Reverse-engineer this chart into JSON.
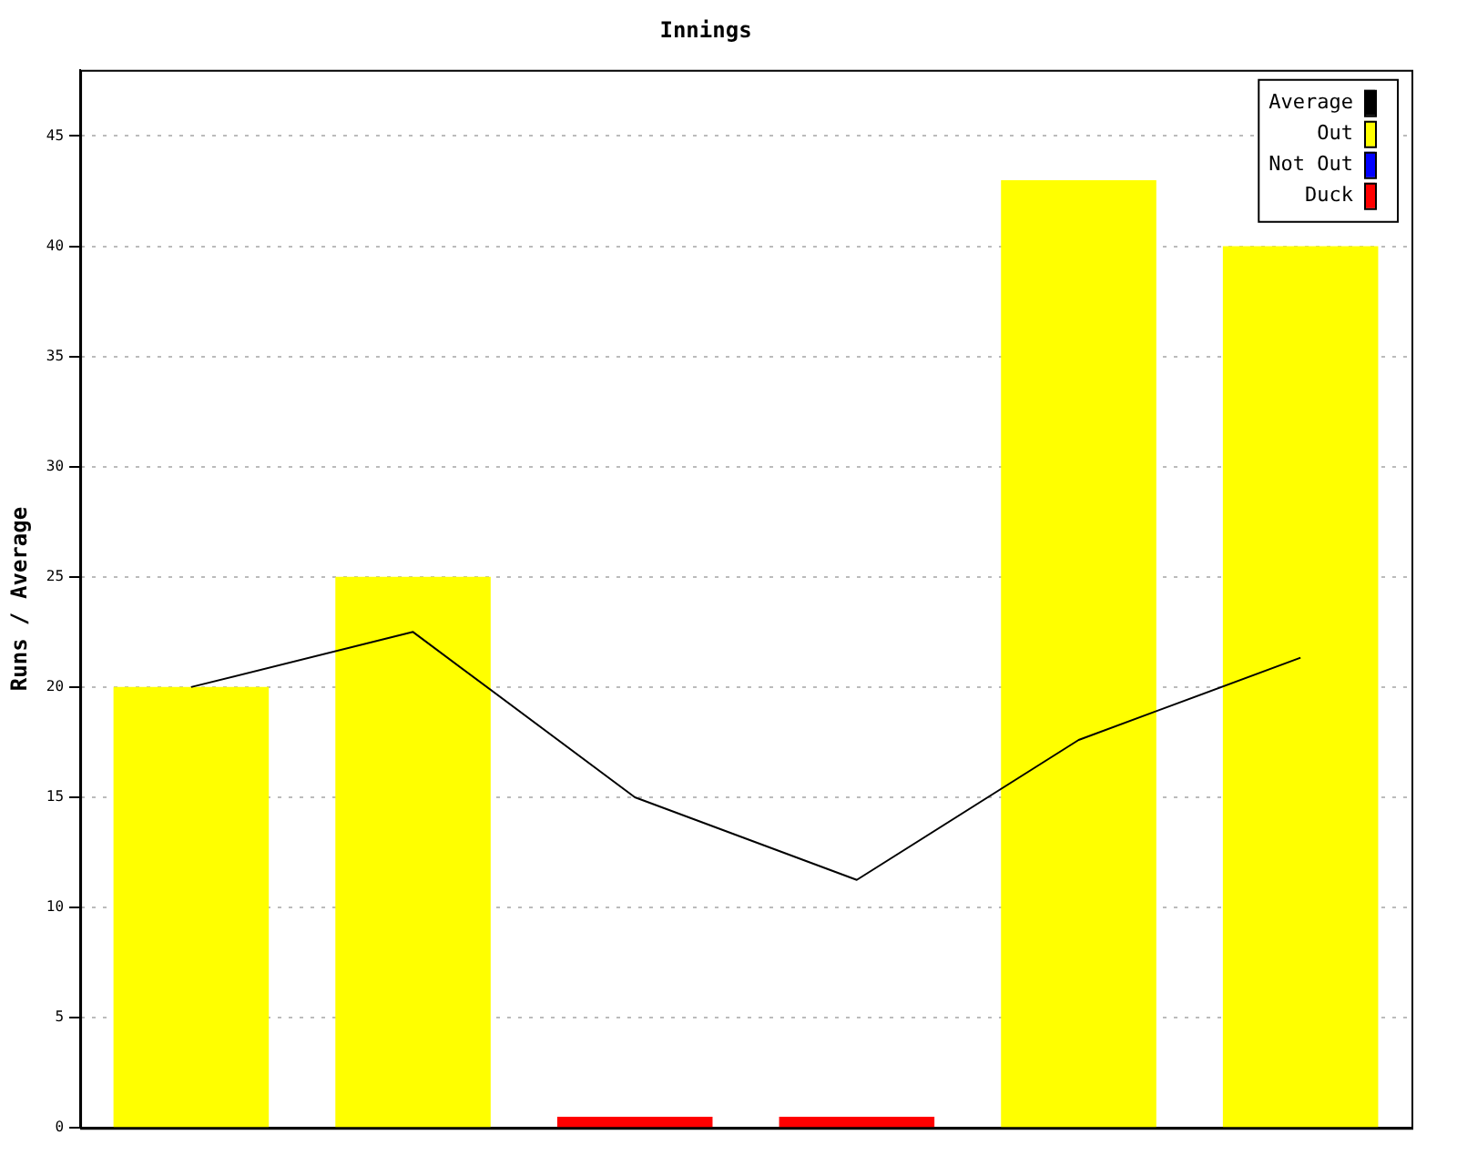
{
  "chart_data": {
    "type": "bar",
    "title": "Innings",
    "ylabel": "Runs / Average",
    "categories": [
      null,
      null,
      null,
      null,
      null,
      null
    ],
    "series": [
      {
        "name": "Average",
        "type": "line",
        "color": "#000000",
        "values": [
          20,
          22.5,
          15,
          11.25,
          17.6,
          21.33
        ]
      },
      {
        "name": "Out",
        "color": "#ffff00",
        "values": [
          20,
          25,
          null,
          null,
          43,
          40
        ]
      },
      {
        "name": "Not Out",
        "color": "#0000ff",
        "values": [
          null,
          null,
          null,
          null,
          null,
          null
        ]
      },
      {
        "name": "Duck",
        "color": "#ff0000",
        "values": [
          null,
          null,
          0.5,
          0.5,
          null,
          null
        ]
      }
    ],
    "stacked": true,
    "ylim": [
      0,
      48
    ],
    "yticks": [
      0,
      5,
      10,
      15,
      20,
      25,
      30,
      35,
      40,
      45
    ],
    "grid": "y",
    "legend": "top right",
    "marker": "none"
  }
}
